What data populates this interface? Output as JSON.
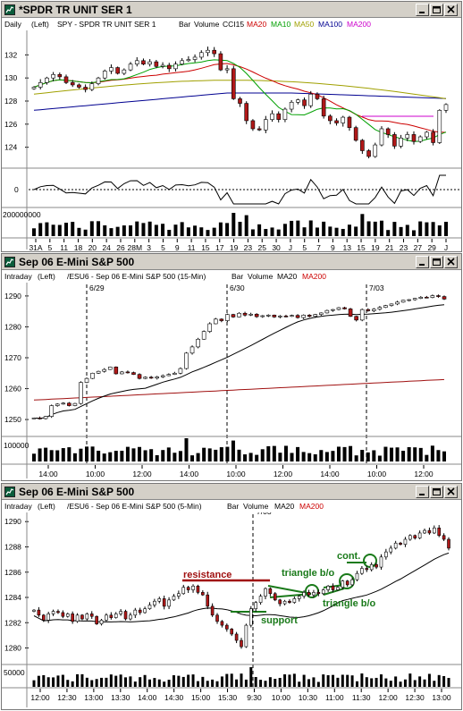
{
  "colors": {
    "up": "#ffffff",
    "down": "#b01818",
    "ma20": "#cc0000",
    "ma10": "#00a000",
    "ma50": "#a0a000",
    "ma100": "#000090",
    "ma200": "#cc00cc",
    "green": "#1a7a1a",
    "resistance": "#a01010"
  },
  "windows": [
    {
      "title": "*SPDR TR UNIT SER 1",
      "info": {
        "interval": "Daily",
        "scale": "(Left)",
        "symbol": "SPY - SPDR TR UNIT SER 1",
        "type": "Bar",
        "volume": "Volume",
        "cci": "CCI15",
        "ma20": "MA20",
        "ma10": "MA10",
        "ma50": "MA50",
        "ma100": "MA100",
        "ma200": "MA200"
      },
      "y_ticks": [
        "132",
        "130",
        "128",
        "126",
        "124"
      ],
      "osc_label": "0",
      "vol_label": "200000000",
      "x_ticks": [
        "31A",
        "5",
        "11",
        "18",
        "20",
        "24",
        "26",
        "28M",
        "3",
        "5",
        "9",
        "11",
        "15",
        "17",
        "19",
        "23",
        "25",
        "30",
        "J",
        "5",
        "7",
        "9",
        "13",
        "15",
        "19",
        "21",
        "23",
        "27",
        "29",
        "J"
      ]
    },
    {
      "title": "Sep 06  E-Mini S&P 500",
      "info": {
        "interval": "Intraday",
        "scale": "(Left)",
        "symbol": "/ESU6 - Sep 06  E-Mini S&P 500  (15-Min)",
        "type": "Bar",
        "volume": "Volume",
        "ma20": "MA20",
        "ma200": "MA200"
      },
      "y_ticks": [
        "1290",
        "1280",
        "1270",
        "1260",
        "1250"
      ],
      "vol_label": "100000",
      "date_marks": [
        "6/29",
        "6/30",
        "7/03"
      ],
      "x_ticks": [
        "14:00",
        "10:00",
        "12:00",
        "14:00",
        "10:00",
        "12:00",
        "14:00",
        "10:00",
        "12:00"
      ]
    },
    {
      "title": "Sep 06  E-Mini S&P 500",
      "info": {
        "interval": "Intraday",
        "scale": "(Left)",
        "symbol": "/ESU6 - Sep 06  E-Mini S&P 500  (5-Min)",
        "type": "Bar",
        "volume": "Volume",
        "ma20": "MA20",
        "ma200": "MA200"
      },
      "y_ticks": [
        "1290",
        "1288",
        "1286",
        "1284",
        "1282",
        "1280"
      ],
      "vol_label": "50000",
      "date_marks": [
        "7/03"
      ],
      "x_ticks": [
        "12:00",
        "12:30",
        "13:00",
        "13:30",
        "14:00",
        "14:30",
        "15:00",
        "15:30",
        "9:30",
        "10:00",
        "10:30",
        "11:00",
        "11:30",
        "12:00",
        "12:30",
        "13:00"
      ],
      "annotations": {
        "resistance": "resistance",
        "support": "support",
        "triangle1": "triangle b/o",
        "triangle2": "triangle b/o",
        "cont": "cont."
      }
    }
  ],
  "chart_data": [
    {
      "type": "candlestick",
      "title": "SPY - SPDR TR UNIT SER 1 (Daily)",
      "ylim": [
        122.5,
        133.5
      ],
      "close": [
        129.2,
        129.6,
        130,
        130.3,
        130.1,
        129.6,
        129.4,
        129.2,
        129,
        129.5,
        130,
        130.6,
        130.9,
        130.4,
        130.7,
        131.2,
        131.5,
        131.2,
        131.4,
        131,
        131.1,
        130.8,
        131.2,
        131.5,
        131.6,
        131.8,
        132.2,
        132.4,
        132.1,
        130.7,
        130.8,
        128.2,
        127.8,
        126.3,
        125.6,
        125.5,
        126.4,
        126.9,
        126.4,
        127.3,
        127.9,
        128.1,
        127.6,
        128.6,
        128.2,
        126.7,
        126.3,
        126.1,
        126.6,
        125.7,
        124.6,
        123.7,
        123.2,
        124.2,
        125.6,
        125.1,
        124.1,
        124.8,
        125.1,
        124.5,
        124.9,
        125.3,
        124.4,
        127.2,
        127.7
      ]
    },
    {
      "type": "candlestick",
      "title": "/ESU6 (15-Min)",
      "ylim": [
        1248,
        1292
      ],
      "close": [
        1250.5,
        1250.3,
        1251,
        1254.5,
        1255,
        1255.3,
        1254.5,
        1255.2,
        1262,
        1263.3,
        1265,
        1265.6,
        1266.2,
        1267,
        1264.8,
        1265.4,
        1265.2,
        1264.6,
        1263.3,
        1263.7,
        1263.4,
        1263.8,
        1264.2,
        1264.6,
        1265,
        1266.5,
        1271.5,
        1273.5,
        1276,
        1278.5,
        1281,
        1282.5,
        1282,
        1284,
        1283.2,
        1284.4,
        1283.8,
        1284.1,
        1283.3,
        1283.6,
        1283.8,
        1283.2,
        1283.5,
        1283.4,
        1283.7,
        1283,
        1283.8,
        1283.4,
        1284,
        1284.5,
        1285.3,
        1285.6,
        1286.2,
        1285.8,
        1283.4,
        1282.2,
        1285.6,
        1285.2,
        1285.7,
        1286.3,
        1286.9,
        1287.4,
        1288,
        1288.6,
        1288.8,
        1289.2,
        1289.6,
        1289.5,
        1290.1,
        1289.8,
        1289
      ]
    },
    {
      "type": "candlestick",
      "title": "/ESU6 (5-Min)",
      "ylim": [
        1279.4,
        1290.3
      ],
      "close": [
        1283,
        1282.6,
        1282.2,
        1282.7,
        1282.9,
        1282.8,
        1282.5,
        1282.7,
        1282.1,
        1282.6,
        1282.3,
        1282.7,
        1282.5,
        1281.9,
        1282.2,
        1282.6,
        1282.4,
        1282.7,
        1282.9,
        1282.3,
        1282.6,
        1283,
        1282.8,
        1283.1,
        1283.4,
        1283.7,
        1283.9,
        1283.3,
        1283.8,
        1284.1,
        1284.3,
        1284.8,
        1284.6,
        1284.9,
        1284.4,
        1284.2,
        1283.3,
        1282.6,
        1282.1,
        1281.8,
        1281.5,
        1281.1,
        1280.6,
        1280.1,
        1281.8,
        1283.1,
        1283.6,
        1284.1,
        1284.7,
        1284.3,
        1283.8,
        1283.5,
        1283.7,
        1283.6,
        1283.9,
        1284.1,
        1284.4,
        1284.2,
        1284.4,
        1284.3,
        1284.6,
        1284.9,
        1284.6,
        1284.8,
        1285.3,
        1285,
        1285.4,
        1285.9,
        1286.3,
        1286.2,
        1286.6,
        1286.4,
        1287.2,
        1287.6,
        1287.9,
        1288.3,
        1288.2,
        1288.6,
        1288.9,
        1288.7,
        1289.1,
        1289.3,
        1289.1,
        1289.5,
        1288.9,
        1288.6,
        1287.9
      ]
    }
  ]
}
